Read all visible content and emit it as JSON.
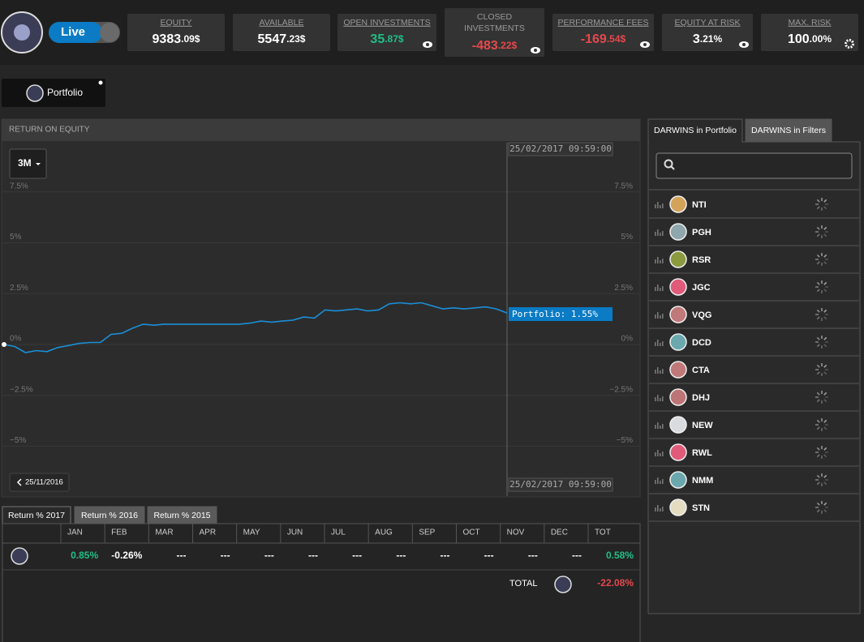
{
  "header": {
    "mode": "Live",
    "stats": [
      {
        "label": "EQUITY",
        "int": "9383",
        "frac": ".09$",
        "color": "#ffffff"
      },
      {
        "label": "AVAILABLE",
        "int": "5547",
        "frac": ".23$",
        "color": "#ffffff"
      },
      {
        "label": "OPEN INVESTMENTS",
        "int": "35",
        "frac": ".87$",
        "color": "#1fbf87",
        "icon": "eye"
      },
      {
        "label": [
          "CLOSED",
          "INVESTMENTS"
        ],
        "int": "-483",
        "frac": ".22$",
        "color": "#e5484d",
        "icon": "eye"
      },
      {
        "label": "PERFORMANCE FEES",
        "int": "-169",
        "frac": ".54$",
        "color": "#e5484d",
        "icon": "eye"
      },
      {
        "label": "EQUITY AT RISK",
        "int": "3",
        "frac": ".21%",
        "color": "#ffffff",
        "icon": "eye"
      },
      {
        "label": "MAX. RISK",
        "int": "100",
        "frac": ".00%",
        "color": "#ffffff",
        "icon": "gear"
      }
    ]
  },
  "portfolio_tab": "Portfolio",
  "chart_data": {
    "type": "line",
    "title": "RETURN ON EQUITY",
    "range_button": "3M",
    "timestamp": "25/02/2017 09:59:00",
    "back_label": "25/11/2016",
    "annotation": "Portfolio: 1.55%",
    "color": "#1a8fd6",
    "grid": true,
    "values": [
      0,
      -0.1,
      -0.4,
      -0.3,
      -0.35,
      -0.15,
      -0.05,
      0.05,
      0.1,
      0.1,
      0.5,
      0.55,
      0.8,
      1.0,
      0.95,
      1.0,
      1.0,
      1.0,
      1.0,
      1.0,
      1.0,
      1.0,
      1.0,
      1.05,
      1.15,
      1.1,
      1.15,
      1.2,
      1.35,
      1.3,
      1.7,
      1.65,
      1.7,
      1.75,
      1.65,
      1.7,
      2.0,
      2.05,
      2.0,
      2.05,
      1.9,
      1.75,
      1.8,
      1.75,
      1.8,
      1.85,
      1.75,
      1.55
    ],
    "ylim": [
      -7.45,
      9.96
    ],
    "yticks": [
      {
        "value": 7.5,
        "label": "7.5%"
      },
      {
        "value": 5,
        "label": "5%"
      },
      {
        "value": 2.5,
        "label": "2.5%"
      },
      {
        "value": 0,
        "label": "0%"
      },
      {
        "value": -2.5,
        "label": "−2.5%"
      },
      {
        "value": -5,
        "label": "−5%"
      }
    ]
  },
  "returns": {
    "tabs": [
      "Return % 2017",
      "Return % 2016",
      "Return % 2015"
    ],
    "columns": [
      "JAN",
      "FEB",
      "MAR",
      "APR",
      "MAY",
      "JUN",
      "JUL",
      "AUG",
      "SEP",
      "OCT",
      "NOV",
      "DEC",
      "TOT"
    ],
    "row": [
      "0.85%",
      "-0.26%",
      "---",
      "---",
      "---",
      "---",
      "---",
      "---",
      "---",
      "---",
      "---",
      "---",
      "0.58%"
    ],
    "total_label": "TOTAL",
    "total": "-22.08%"
  },
  "darwins": {
    "tabs": [
      "DARWINS in Portfolio",
      "DARWINS in Filters"
    ],
    "items": [
      {
        "name": "NTI",
        "color": "#d4a35a"
      },
      {
        "name": "PGH",
        "color": "#8fa6ad"
      },
      {
        "name": "RSR",
        "color": "#8b9a3e"
      },
      {
        "name": "JGC",
        "color": "#e05a7a"
      },
      {
        "name": "VQG",
        "color": "#c07878"
      },
      {
        "name": "DCD",
        "color": "#6aa8ae"
      },
      {
        "name": "CTA",
        "color": "#c07878"
      },
      {
        "name": "DHJ",
        "color": "#bd7474"
      },
      {
        "name": "NEW",
        "color": "#d8dcde"
      },
      {
        "name": "RWL",
        "color": "#e05a7a"
      },
      {
        "name": "NMM",
        "color": "#6aa8ae"
      },
      {
        "name": "STN",
        "color": "#e3dcc0"
      }
    ]
  }
}
